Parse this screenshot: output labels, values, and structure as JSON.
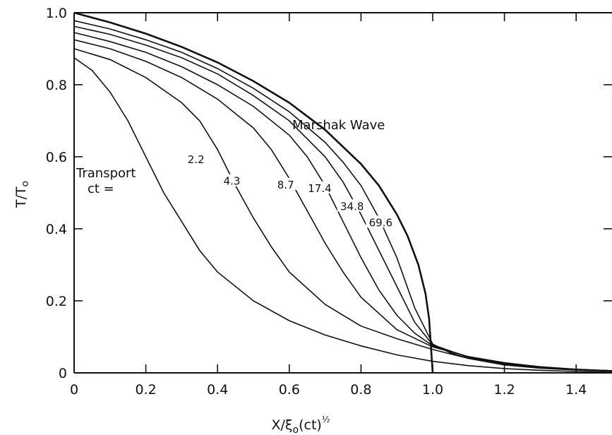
{
  "chart_data": {
    "type": "line",
    "xlabel": "X/ξ₀(ct)½",
    "ylabel": "T/T₀",
    "xlim": [
      0,
      1.5
    ],
    "ylim": [
      0,
      1.0
    ],
    "xticks": [
      "0",
      "0.2",
      "0.4",
      "0.6",
      "0.8",
      "1.0",
      "1.2",
      "1.4"
    ],
    "yticks": [
      "0",
      "0.2",
      "0.4",
      "0.6",
      "0.8",
      "1.0"
    ],
    "annotations": {
      "marshak_label": "Marshak Wave",
      "transport_label": "Transport",
      "ct_label": "ct ="
    },
    "marshak": {
      "points": [
        [
          0,
          1.0
        ],
        [
          0.1,
          0.973
        ],
        [
          0.2,
          0.942
        ],
        [
          0.3,
          0.905
        ],
        [
          0.4,
          0.862
        ],
        [
          0.5,
          0.81
        ],
        [
          0.6,
          0.75
        ],
        [
          0.7,
          0.675
        ],
        [
          0.8,
          0.58
        ],
        [
          0.85,
          0.52
        ],
        [
          0.9,
          0.44
        ],
        [
          0.93,
          0.38
        ],
        [
          0.96,
          0.3
        ],
        [
          0.98,
          0.22
        ],
        [
          0.99,
          0.15
        ],
        [
          1.0,
          0.0
        ]
      ]
    },
    "series": [
      {
        "name": "2.2",
        "label_at": [
          0.34,
          0.59
        ],
        "points": [
          [
            0,
            0.875
          ],
          [
            0.05,
            0.84
          ],
          [
            0.1,
            0.78
          ],
          [
            0.15,
            0.7
          ],
          [
            0.2,
            0.6
          ],
          [
            0.25,
            0.5
          ],
          [
            0.3,
            0.42
          ],
          [
            0.35,
            0.34
          ],
          [
            0.4,
            0.28
          ],
          [
            0.5,
            0.2
          ],
          [
            0.6,
            0.145
          ],
          [
            0.7,
            0.105
          ],
          [
            0.8,
            0.075
          ],
          [
            0.9,
            0.05
          ],
          [
            1.0,
            0.032
          ],
          [
            1.1,
            0.02
          ],
          [
            1.2,
            0.012
          ],
          [
            1.3,
            0.007
          ],
          [
            1.4,
            0.004
          ],
          [
            1.5,
            0.002
          ]
        ]
      },
      {
        "name": "4.3",
        "label_at": [
          0.44,
          0.53
        ],
        "points": [
          [
            0,
            0.9
          ],
          [
            0.1,
            0.87
          ],
          [
            0.2,
            0.82
          ],
          [
            0.3,
            0.75
          ],
          [
            0.35,
            0.7
          ],
          [
            0.4,
            0.62
          ],
          [
            0.45,
            0.52
          ],
          [
            0.5,
            0.43
          ],
          [
            0.55,
            0.35
          ],
          [
            0.6,
            0.28
          ],
          [
            0.7,
            0.19
          ],
          [
            0.8,
            0.13
          ],
          [
            0.9,
            0.095
          ],
          [
            1.0,
            0.065
          ],
          [
            1.1,
            0.04
          ],
          [
            1.2,
            0.025
          ],
          [
            1.3,
            0.015
          ],
          [
            1.4,
            0.009
          ],
          [
            1.5,
            0.005
          ]
        ]
      },
      {
        "name": "8.7",
        "label_at": [
          0.59,
          0.52
        ],
        "points": [
          [
            0,
            0.925
          ],
          [
            0.1,
            0.9
          ],
          [
            0.2,
            0.865
          ],
          [
            0.3,
            0.82
          ],
          [
            0.4,
            0.76
          ],
          [
            0.5,
            0.68
          ],
          [
            0.55,
            0.62
          ],
          [
            0.6,
            0.54
          ],
          [
            0.65,
            0.45
          ],
          [
            0.7,
            0.36
          ],
          [
            0.75,
            0.28
          ],
          [
            0.8,
            0.21
          ],
          [
            0.9,
            0.12
          ],
          [
            1.0,
            0.072
          ],
          [
            1.1,
            0.045
          ],
          [
            1.2,
            0.028
          ],
          [
            1.3,
            0.017
          ],
          [
            1.4,
            0.01
          ],
          [
            1.5,
            0.006
          ]
        ]
      },
      {
        "name": "17.4",
        "label_at": [
          0.685,
          0.51
        ],
        "points": [
          [
            0,
            0.945
          ],
          [
            0.1,
            0.92
          ],
          [
            0.2,
            0.89
          ],
          [
            0.3,
            0.85
          ],
          [
            0.4,
            0.8
          ],
          [
            0.5,
            0.74
          ],
          [
            0.6,
            0.66
          ],
          [
            0.65,
            0.6
          ],
          [
            0.7,
            0.52
          ],
          [
            0.75,
            0.42
          ],
          [
            0.8,
            0.32
          ],
          [
            0.85,
            0.23
          ],
          [
            0.9,
            0.16
          ],
          [
            0.95,
            0.11
          ],
          [
            1.0,
            0.075
          ],
          [
            1.1,
            0.045
          ],
          [
            1.2,
            0.028
          ],
          [
            1.3,
            0.016
          ],
          [
            1.4,
            0.01
          ],
          [
            1.5,
            0.006
          ]
        ]
      },
      {
        "name": "34.8",
        "label_at": [
          0.775,
          0.46
        ],
        "points": [
          [
            0,
            0.962
          ],
          [
            0.1,
            0.94
          ],
          [
            0.2,
            0.91
          ],
          [
            0.3,
            0.875
          ],
          [
            0.4,
            0.83
          ],
          [
            0.5,
            0.77
          ],
          [
            0.6,
            0.7
          ],
          [
            0.7,
            0.6
          ],
          [
            0.75,
            0.53
          ],
          [
            0.8,
            0.44
          ],
          [
            0.85,
            0.34
          ],
          [
            0.9,
            0.24
          ],
          [
            0.95,
            0.14
          ],
          [
            1.0,
            0.078
          ],
          [
            1.1,
            0.043
          ],
          [
            1.2,
            0.025
          ],
          [
            1.3,
            0.015
          ],
          [
            1.4,
            0.009
          ],
          [
            1.5,
            0.005
          ]
        ]
      },
      {
        "name": "69.6",
        "label_at": [
          0.855,
          0.415
        ],
        "points": [
          [
            0,
            0.978
          ],
          [
            0.1,
            0.955
          ],
          [
            0.2,
            0.925
          ],
          [
            0.3,
            0.89
          ],
          [
            0.4,
            0.845
          ],
          [
            0.5,
            0.79
          ],
          [
            0.6,
            0.725
          ],
          [
            0.7,
            0.64
          ],
          [
            0.75,
            0.585
          ],
          [
            0.8,
            0.52
          ],
          [
            0.85,
            0.43
          ],
          [
            0.9,
            0.32
          ],
          [
            0.95,
            0.18
          ],
          [
            1.0,
            0.08
          ],
          [
            1.05,
            0.055
          ],
          [
            1.1,
            0.04
          ],
          [
            1.2,
            0.022
          ],
          [
            1.3,
            0.013
          ],
          [
            1.4,
            0.008
          ],
          [
            1.5,
            0.005
          ]
        ]
      }
    ]
  }
}
